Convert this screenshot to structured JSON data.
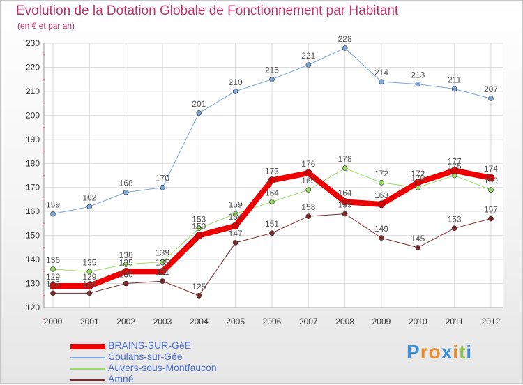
{
  "header": {
    "title": "Evolution de la Dotation Globale de Fonctionnement par Habitant",
    "subtitle": "(en € et par an)"
  },
  "logo": {
    "text": "Proxiti"
  },
  "chart_data": {
    "type": "line",
    "title": "Evolution de la Dotation Globale de Fonctionnement par Habitant",
    "subtitle": "(en € et par an)",
    "xlabel": "",
    "ylabel": "",
    "ylim": [
      120,
      230
    ],
    "yticks": [
      120,
      130,
      140,
      150,
      160,
      170,
      180,
      190,
      200,
      210,
      220,
      230
    ],
    "grid": true,
    "legend_position": "bottom-left",
    "x": [
      "2000",
      "2001",
      "2002",
      "2003",
      "2004",
      "2005",
      "2006",
      "2007",
      "2008",
      "2009",
      "2010",
      "2011",
      "2012"
    ],
    "series": [
      {
        "name": "BRAINS-SUR-GéE",
        "color": "#ee0000",
        "width": 8,
        "values": [
          129,
          129,
          135,
          135,
          150,
          154,
          173,
          176,
          164,
          163,
          172,
          177,
          174
        ]
      },
      {
        "name": "Coulans-sur-Gée",
        "color": "#7aa6d8",
        "width": 1,
        "values": [
          159,
          162,
          168,
          170,
          201,
          210,
          215,
          221,
          228,
          214,
          213,
          211,
          207
        ]
      },
      {
        "name": "Auvers-sous-Montfaucon",
        "color": "#99dd66",
        "width": 1,
        "values": [
          136,
          135,
          138,
          139,
          153,
          159,
          164,
          169,
          178,
          172,
          170,
          175,
          169
        ]
      },
      {
        "name": "Amné",
        "color": "#7a2a2a",
        "width": 1,
        "values": [
          126,
          126,
          130,
          131,
          125,
          147,
          151,
          158,
          159,
          149,
          145,
          153,
          157
        ]
      }
    ]
  }
}
